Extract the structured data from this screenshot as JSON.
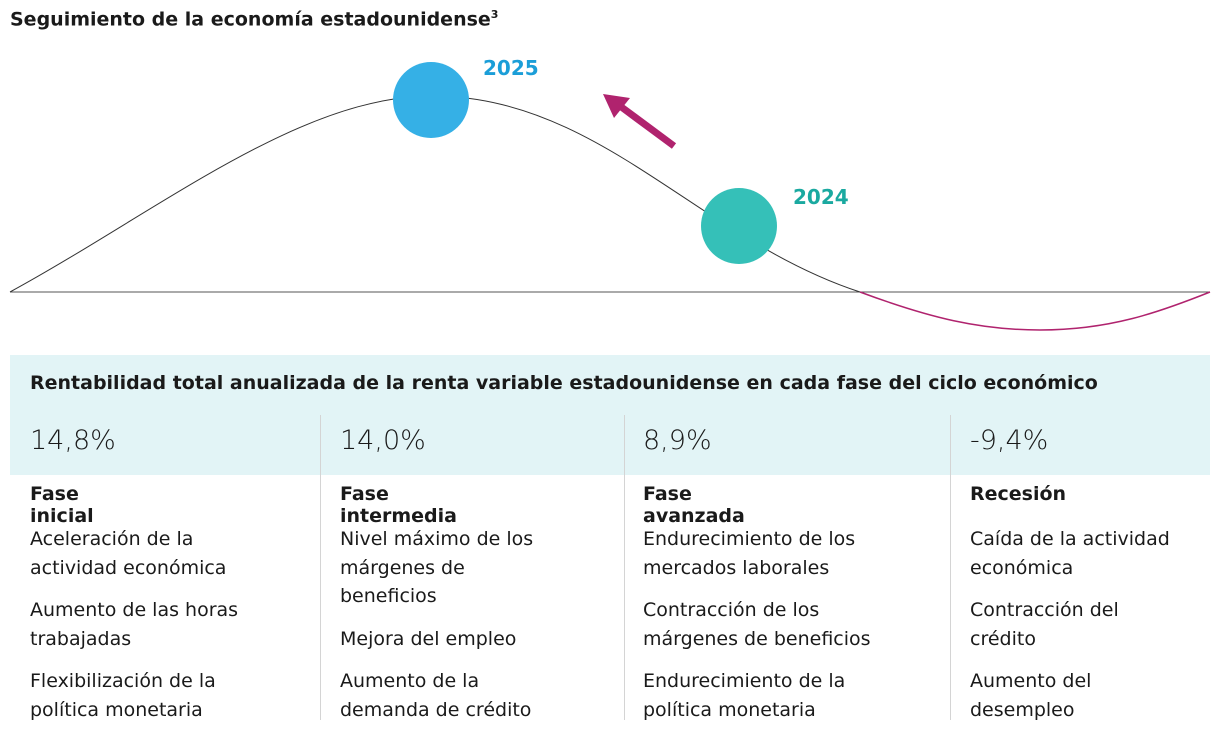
{
  "header": {
    "title": "Seguimiento de la economía estadounidense",
    "footnote": "3"
  },
  "cycle": {
    "markers": [
      {
        "label": "2025"
      },
      {
        "label": "2024"
      }
    ]
  },
  "table": {
    "title": "Rentabilidad total anualizada de la renta variable estadounidense en cada fase del ciclo económico",
    "columns": [
      {
        "return": "14,8%",
        "phase": "Fase inicial",
        "items": [
          [
            "Aceleración de la",
            "actividad económica"
          ],
          [
            "Aumento de las horas",
            "trabajadas"
          ],
          [
            "Flexibilización de la",
            "política monetaria"
          ]
        ]
      },
      {
        "return": "14,0%",
        "phase": "Fase intermedia",
        "items": [
          [
            "Nivel máximo de los",
            "márgenes de",
            "beneficios"
          ],
          [
            "Mejora del empleo"
          ],
          [
            "Aumento de la",
            "demanda de crédito"
          ]
        ]
      },
      {
        "return": "8,9%",
        "phase": "Fase avanzada",
        "items": [
          [
            "Endurecimiento de los",
            "mercados laborales"
          ],
          [
            "Contracción de los",
            "márgenes de beneficios"
          ],
          [
            "Endurecimiento de la",
            "política monetaria"
          ]
        ]
      },
      {
        "return": "-9,4%",
        "phase": "Recesión",
        "items": [
          [
            "Caída de la actividad",
            "económica"
          ],
          [
            "Contracción del",
            "crédito"
          ],
          [
            "Aumento del",
            "desempleo"
          ]
        ]
      }
    ]
  }
}
